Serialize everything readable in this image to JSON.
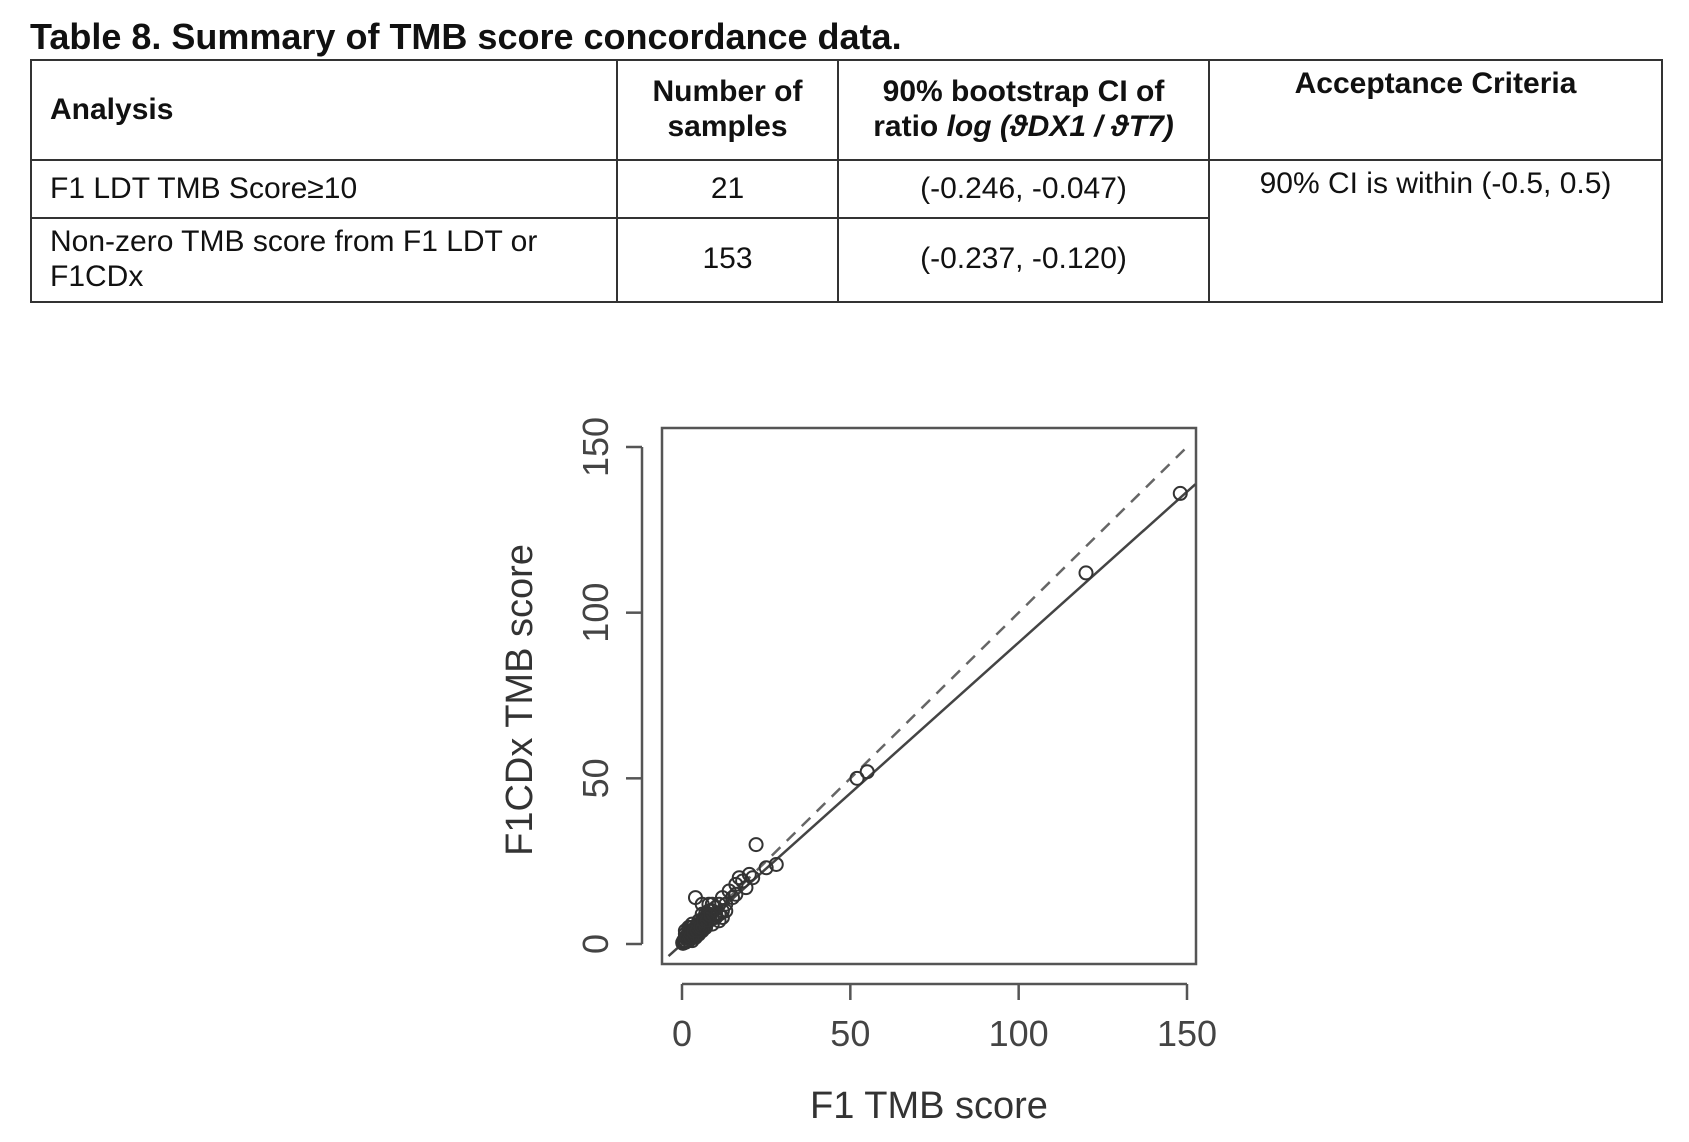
{
  "table": {
    "caption": "Table 8. Summary of TMB score concordance data.",
    "headers": {
      "analysis": "Analysis",
      "samples": "Number of samples",
      "ci_line1": "90% bootstrap CI of",
      "ci_line2_prefix": "ratio ",
      "ci_line2_formula": "log (ϑDX1 / ϑT7)",
      "acceptance": "Acceptance Criteria"
    },
    "rows": [
      {
        "analysis": "F1 LDT TMB Score≥10",
        "samples": "21",
        "ci": "(-0.246, -0.047)"
      },
      {
        "analysis": "Non-zero TMB score from F1 LDT or F1CDx",
        "samples": "153",
        "ci": "(-0.237, -0.120)"
      }
    ],
    "acceptance_value": "90% CI is within (-0.5, 0.5)"
  },
  "chart_data": {
    "type": "scatter",
    "xlabel": "F1 TMB score",
    "ylabel": "F1CDx TMB score",
    "xlim": [
      -6,
      153
    ],
    "ylim": [
      -6,
      156
    ],
    "xticks": [
      0,
      50,
      100,
      150
    ],
    "yticks": [
      0,
      50,
      100,
      150
    ],
    "grid": false,
    "marker": "open-circle",
    "reference_line": {
      "style": "dashed",
      "slope": 1,
      "intercept": 0
    },
    "fit_line": {
      "style": "solid",
      "slope": 0.91,
      "intercept": 0
    },
    "points": [
      [
        148,
        136
      ],
      [
        120,
        112
      ],
      [
        55,
        52
      ],
      [
        52,
        50
      ],
      [
        22,
        30
      ],
      [
        28,
        24
      ],
      [
        25,
        23
      ],
      [
        21,
        20
      ],
      [
        20,
        21
      ],
      [
        18,
        19
      ],
      [
        17,
        20
      ],
      [
        16,
        18
      ],
      [
        19,
        17
      ],
      [
        15,
        14
      ],
      [
        16,
        15
      ],
      [
        14,
        16
      ],
      [
        12,
        14
      ],
      [
        13,
        12
      ],
      [
        11,
        12
      ],
      [
        12,
        10
      ],
      [
        10,
        11
      ],
      [
        9,
        10
      ],
      [
        10,
        9
      ],
      [
        11,
        9
      ],
      [
        9,
        8
      ],
      [
        8,
        9
      ],
      [
        7,
        8
      ],
      [
        8,
        7
      ],
      [
        7,
        7
      ],
      [
        6,
        7
      ],
      [
        7,
        6
      ],
      [
        6,
        6
      ],
      [
        5,
        6
      ],
      [
        6,
        5
      ],
      [
        5,
        5
      ],
      [
        4,
        5
      ],
      [
        5,
        4
      ],
      [
        4,
        4
      ],
      [
        3,
        4
      ],
      [
        4,
        3
      ],
      [
        3,
        3
      ],
      [
        2,
        3
      ],
      [
        3,
        2
      ],
      [
        2,
        2
      ],
      [
        1,
        2
      ],
      [
        2,
        1
      ],
      [
        1,
        1
      ],
      [
        0.5,
        1
      ],
      [
        1,
        0.5
      ],
      [
        0.5,
        0.5
      ],
      [
        6,
        9
      ],
      [
        8,
        10
      ],
      [
        10,
        8
      ],
      [
        7,
        9
      ],
      [
        9,
        6
      ],
      [
        5,
        7
      ],
      [
        4,
        14
      ],
      [
        6,
        12
      ],
      [
        8,
        12
      ],
      [
        3,
        6
      ],
      [
        2,
        5
      ],
      [
        1,
        3
      ],
      [
        3,
        1
      ],
      [
        4,
        2
      ],
      [
        5,
        3
      ],
      [
        6,
        4
      ],
      [
        7,
        5
      ],
      [
        2,
        4
      ],
      [
        1,
        4
      ],
      [
        3,
        5
      ],
      [
        12,
        8
      ],
      [
        11,
        7
      ],
      [
        13,
        10
      ],
      [
        9,
        12
      ],
      [
        0.3,
        0.2
      ],
      [
        0.2,
        0.4
      ],
      [
        1.5,
        1.8
      ],
      [
        2.5,
        2.2
      ],
      [
        3.5,
        3.8
      ],
      [
        4.5,
        4.1
      ],
      [
        5.5,
        5.2
      ],
      [
        6.5,
        6.8
      ],
      [
        7.5,
        7.2
      ],
      [
        8.5,
        8.8
      ]
    ]
  }
}
